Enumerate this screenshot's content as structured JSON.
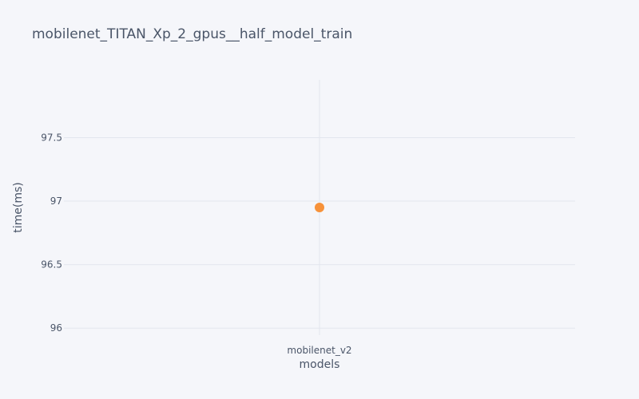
{
  "chart_data": {
    "type": "scatter",
    "title": "mobilenet_TITAN_Xp_2_gpus__half_model_train",
    "xlabel": "models",
    "ylabel": "time(ms)",
    "categories": [
      "mobilenet_v2"
    ],
    "series": [
      {
        "values": [
          96.95
        ]
      }
    ],
    "ylim": [
      95.945,
      97.955
    ],
    "yticks": [
      96,
      96.5,
      97,
      97.5
    ],
    "ytick_labels": [
      "96",
      "96.5",
      "97",
      "97.5"
    ],
    "grid": true,
    "marker_color": "#f7923a"
  }
}
